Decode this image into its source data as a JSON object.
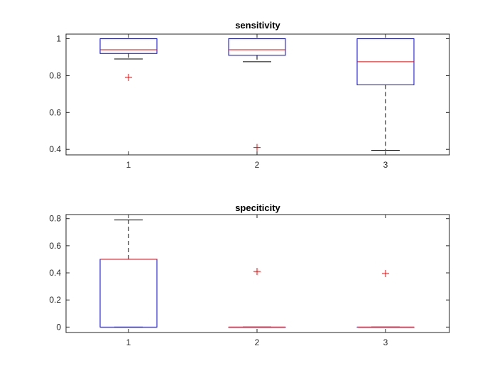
{
  "colors": {
    "box": "#0000ff",
    "median": "#ff0000",
    "whisker": "#000000",
    "outlier": "#ff0000",
    "axes": "#262626"
  },
  "chart_data": [
    {
      "type": "boxplot",
      "title": "sensitivity",
      "categories": [
        "1",
        "2",
        "3"
      ],
      "ylim": [
        0.37,
        1.025
      ],
      "yticks": [
        0.4,
        0.6,
        0.8,
        1
      ],
      "ytick_labels": [
        "0.4",
        "0.6",
        "0.8",
        "1"
      ],
      "grid": false,
      "boxes": [
        {
          "label": "1",
          "q1": 0.92,
          "median": 0.94,
          "q3": 1.0,
          "whisker_low": 0.89,
          "whisker_high": 1.0,
          "outliers": [
            0.79
          ]
        },
        {
          "label": "2",
          "q1": 0.91,
          "median": 0.94,
          "q3": 1.0,
          "whisker_low": 0.875,
          "whisker_high": 1.0,
          "outliers": [
            0.41
          ]
        },
        {
          "label": "3",
          "q1": 0.75,
          "median": 0.875,
          "q3": 1.0,
          "whisker_low": 0.395,
          "whisker_high": 1.0,
          "outliers": []
        }
      ]
    },
    {
      "type": "boxplot",
      "title": "speciticity",
      "categories": [
        "1",
        "2",
        "3"
      ],
      "ylim": [
        -0.04,
        0.83
      ],
      "yticks": [
        0,
        0.2,
        0.4,
        0.6,
        0.8
      ],
      "ytick_labels": [
        "0",
        "0.2",
        "0.4",
        "0.6",
        "0.8"
      ],
      "grid": false,
      "boxes": [
        {
          "label": "1",
          "q1": 0.0,
          "median": 0.5,
          "q3": 0.5,
          "whisker_low": 0.0,
          "whisker_high": 0.79,
          "outliers": []
        },
        {
          "label": "2",
          "q1": 0.0,
          "median": 0.0,
          "q3": 0.0,
          "whisker_low": 0.0,
          "whisker_high": 0.0,
          "outliers": [
            0.41
          ]
        },
        {
          "label": "3",
          "q1": 0.0,
          "median": 0.0,
          "q3": 0.0,
          "whisker_low": 0.0,
          "whisker_high": 0.0,
          "outliers": [
            0.395
          ]
        }
      ]
    }
  ]
}
